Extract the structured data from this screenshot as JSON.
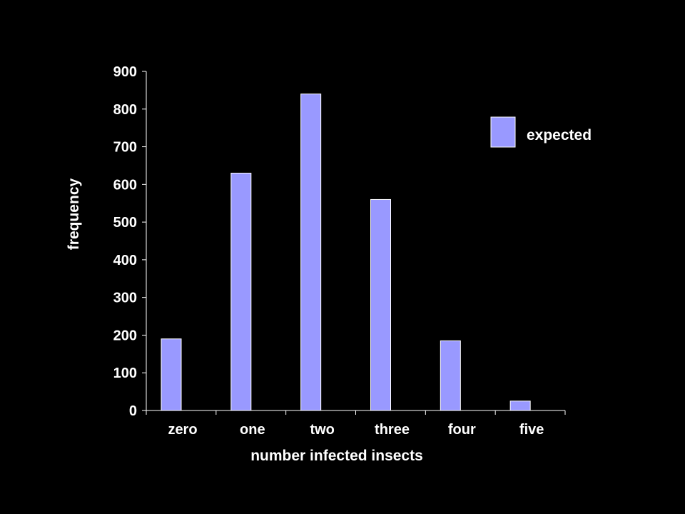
{
  "chart_data": {
    "type": "bar",
    "categories": [
      "zero",
      "one",
      "two",
      "three",
      "four",
      "five"
    ],
    "series": [
      {
        "name": "expected",
        "values": [
          190,
          630,
          840,
          560,
          185,
          25
        ]
      }
    ],
    "xlabel": "number infected insects",
    "ylabel": "frequency",
    "ylim": [
      0,
      900
    ],
    "yticks": [
      0,
      100,
      200,
      300,
      400,
      500,
      600,
      700,
      800,
      900
    ],
    "grid": false,
    "legend_position": "top-right",
    "colors": {
      "background": "#000000",
      "bar_fill": "#9999ff",
      "bar_stroke": "#ffffff",
      "axis": "#ffffff",
      "text": "#ffffff"
    }
  }
}
